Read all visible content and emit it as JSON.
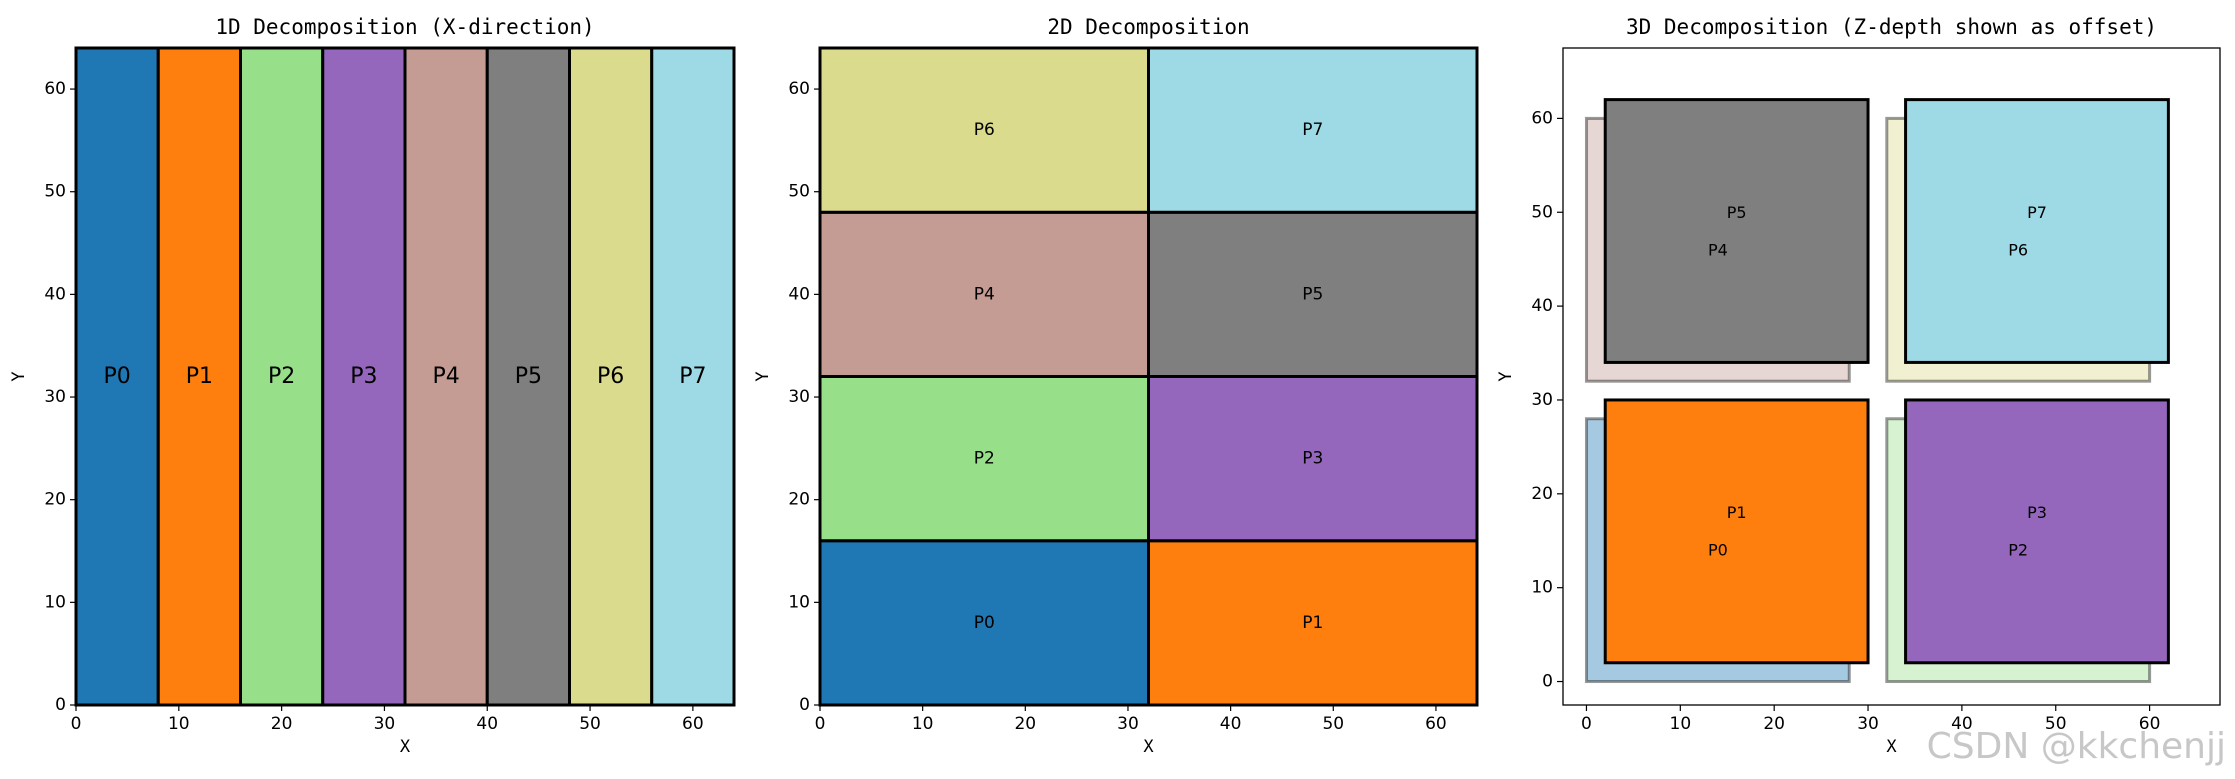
{
  "chart_data": [
    {
      "type": "1d-decomposition",
      "title": "1D Decomposition (X-direction)",
      "xlabel": "X",
      "ylabel": "Y",
      "xlim": [
        0,
        64
      ],
      "ylim": [
        0,
        64
      ],
      "xticks": [
        0,
        10,
        20,
        30,
        40,
        50,
        60
      ],
      "yticks": [
        0,
        10,
        20,
        30,
        40,
        50,
        60
      ],
      "rects": [
        {
          "label": "P0",
          "x": 0,
          "y": 0,
          "w": 8,
          "h": 64,
          "color": "#1f77b4"
        },
        {
          "label": "P1",
          "x": 8,
          "y": 0,
          "w": 8,
          "h": 64,
          "color": "#ff7f0e"
        },
        {
          "label": "P2",
          "x": 16,
          "y": 0,
          "w": 8,
          "h": 64,
          "color": "#98df8a"
        },
        {
          "label": "P3",
          "x": 24,
          "y": 0,
          "w": 8,
          "h": 64,
          "color": "#9467bd"
        },
        {
          "label": "P4",
          "x": 32,
          "y": 0,
          "w": 8,
          "h": 64,
          "color": "#c49c94"
        },
        {
          "label": "P5",
          "x": 40,
          "y": 0,
          "w": 8,
          "h": 64,
          "color": "#7f7f7f"
        },
        {
          "label": "P6",
          "x": 48,
          "y": 0,
          "w": 8,
          "h": 64,
          "color": "#dbdb8d"
        },
        {
          "label": "P7",
          "x": 56,
          "y": 0,
          "w": 8,
          "h": 64,
          "color": "#9edae5"
        }
      ]
    },
    {
      "type": "2d-decomposition",
      "title": "2D Decomposition",
      "xlabel": "X",
      "ylabel": "Y",
      "xlim": [
        0,
        64
      ],
      "ylim": [
        0,
        64
      ],
      "xticks": [
        0,
        10,
        20,
        30,
        40,
        50,
        60
      ],
      "yticks": [
        0,
        10,
        20,
        30,
        40,
        50,
        60
      ],
      "rects": [
        {
          "label": "P0",
          "x": 0,
          "y": 0,
          "w": 32,
          "h": 16,
          "color": "#1f77b4"
        },
        {
          "label": "P1",
          "x": 32,
          "y": 0,
          "w": 32,
          "h": 16,
          "color": "#ff7f0e"
        },
        {
          "label": "P2",
          "x": 0,
          "y": 16,
          "w": 32,
          "h": 16,
          "color": "#98df8a"
        },
        {
          "label": "P3",
          "x": 32,
          "y": 16,
          "w": 32,
          "h": 16,
          "color": "#9467bd"
        },
        {
          "label": "P4",
          "x": 0,
          "y": 32,
          "w": 32,
          "h": 16,
          "color": "#c49c94"
        },
        {
          "label": "P5",
          "x": 32,
          "y": 32,
          "w": 32,
          "h": 16,
          "color": "#7f7f7f"
        },
        {
          "label": "P6",
          "x": 0,
          "y": 48,
          "w": 32,
          "h": 16,
          "color": "#dbdb8d"
        },
        {
          "label": "P7",
          "x": 32,
          "y": 48,
          "w": 32,
          "h": 16,
          "color": "#9edae5"
        }
      ]
    },
    {
      "type": "3d-decomposition",
      "title": "3D Decomposition (Z-depth shown as offset)",
      "xlabel": "X",
      "ylabel": "Y",
      "xlim": [
        -2.5,
        67.5
      ],
      "ylim": [
        -2.5,
        67.5
      ],
      "xticks": [
        0,
        10,
        20,
        30,
        40,
        50,
        60
      ],
      "yticks": [
        0,
        10,
        20,
        30,
        40,
        50,
        60
      ],
      "rects": [
        {
          "label": "P0",
          "x": 0,
          "y": 0,
          "w": 28,
          "h": 28,
          "color": "#1f77b4",
          "z": 0
        },
        {
          "label": "P2",
          "x": 32,
          "y": 0,
          "w": 28,
          "h": 28,
          "color": "#98df8a",
          "z": 0
        },
        {
          "label": "P4",
          "x": 0,
          "y": 32,
          "w": 28,
          "h": 28,
          "color": "#c49c94",
          "z": 0
        },
        {
          "label": "P6",
          "x": 32,
          "y": 32,
          "w": 28,
          "h": 28,
          "color": "#dbdb8d",
          "z": 0
        },
        {
          "label": "P1",
          "x": 2,
          "y": 2,
          "w": 28,
          "h": 28,
          "color": "#ff7f0e",
          "z": 1
        },
        {
          "label": "P3",
          "x": 34,
          "y": 2,
          "w": 28,
          "h": 28,
          "color": "#9467bd",
          "z": 1
        },
        {
          "label": "P5",
          "x": 2,
          "y": 34,
          "w": 28,
          "h": 28,
          "color": "#7f7f7f",
          "z": 1
        },
        {
          "label": "P7",
          "x": 34,
          "y": 34,
          "w": 28,
          "h": 28,
          "color": "#9edae5",
          "z": 1
        }
      ]
    }
  ],
  "watermark": "CSDN @kkchenjj"
}
